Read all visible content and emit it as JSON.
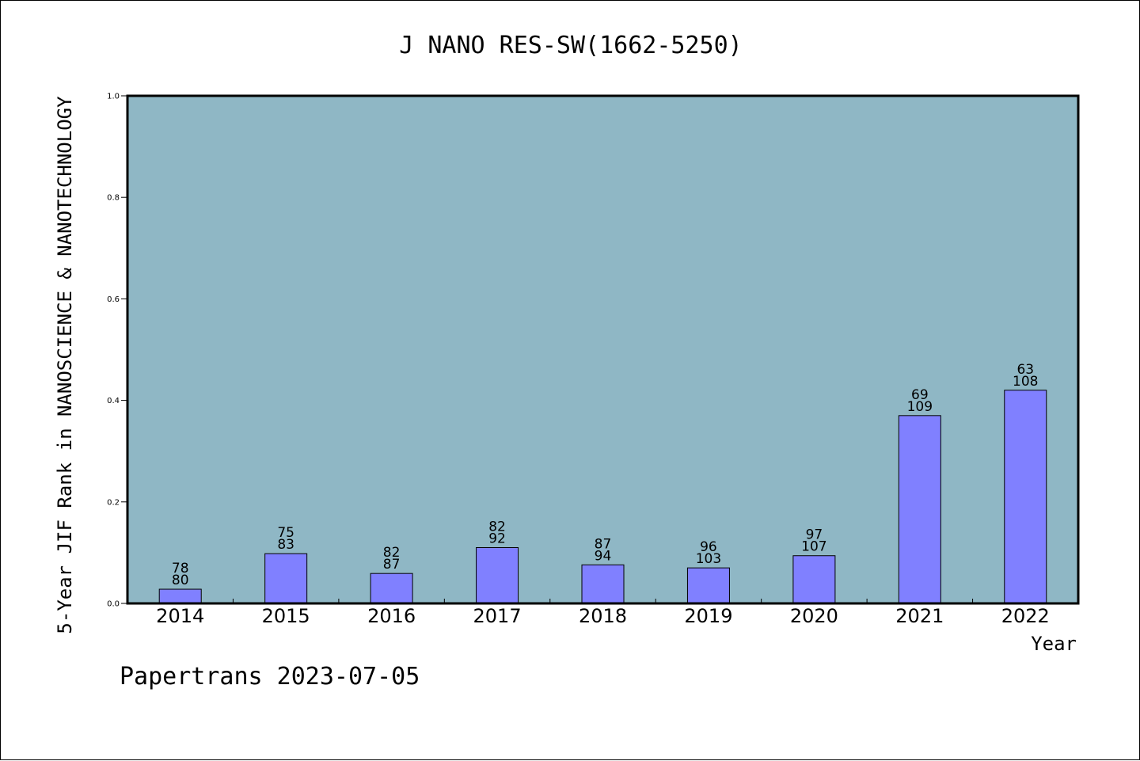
{
  "chart_data": {
    "type": "bar",
    "title": "J NANO RES-SW(1662-5250)",
    "xlabel": "Year",
    "ylabel": "5-Year JIF Rank in NANOSCIENCE & NANOTECHNOLOGY",
    "ylim": [
      0,
      1.0
    ],
    "yticks": [
      "0.0",
      "0.2",
      "0.4",
      "0.6",
      "0.8",
      "1.0"
    ],
    "categories": [
      "2014",
      "2015",
      "2016",
      "2017",
      "2018",
      "2019",
      "2020",
      "2021",
      "2022"
    ],
    "values": [
      0.028,
      0.098,
      0.059,
      0.11,
      0.076,
      0.07,
      0.094,
      0.37,
      0.42
    ],
    "rank_labels": [
      "78",
      "75",
      "82",
      "82",
      "87",
      "96",
      "97",
      "69",
      "63"
    ],
    "total_labels": [
      "80",
      "83",
      "87",
      "92",
      "94",
      "103",
      "107",
      "109",
      "108"
    ],
    "grid": false,
    "colors": {
      "plot_background": "#8fb7c5",
      "bar_fill": "#8080ff",
      "bar_stroke": "#000000",
      "axis": "#000000"
    }
  },
  "footer": {
    "credit": "Papertrans 2023-07-05"
  }
}
